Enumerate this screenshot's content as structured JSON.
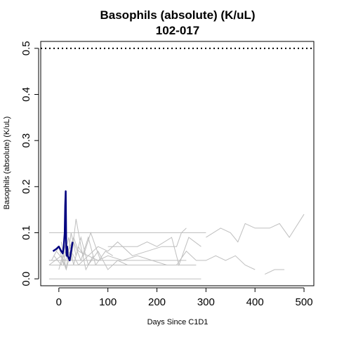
{
  "chart_data": {
    "type": "line",
    "title": "Basophils (absolute) (K/uL)",
    "subtitle": "102-017",
    "xlabel": "Days Since C1D1",
    "ylabel": "Basophils (absolute) (K/uL)",
    "xlim": [
      -37,
      520
    ],
    "ylim": [
      -0.015,
      0.515
    ],
    "x_ticks": [
      0,
      100,
      200,
      300,
      400,
      500
    ],
    "y_ticks": [
      0.0,
      0.1,
      0.2,
      0.3,
      0.4,
      0.5
    ],
    "x_tick_labels": [
      "0",
      "100",
      "200",
      "300",
      "400",
      "500"
    ],
    "y_tick_labels": [
      "0.0",
      "0.1",
      "0.2",
      "0.3",
      "0.4",
      "0.5"
    ],
    "reference_line": {
      "y": 0.5,
      "style": "dotted",
      "color": "#000000"
    },
    "background_color": "#bfbfbf",
    "highlight_color": "#000080",
    "background_series": [
      {
        "x": [
          -20,
          0,
          15,
          30,
          50,
          100,
          150,
          200,
          250,
          300
        ],
        "y": [
          0.1,
          0.1,
          0.1,
          0.1,
          0.1,
          0.1,
          0.1,
          0.1,
          0.1,
          0.1
        ]
      },
      {
        "x": [
          300,
          330,
          350,
          365,
          380,
          400,
          430,
          450,
          470,
          500
        ],
        "y": [
          0.09,
          0.11,
          0.1,
          0.08,
          0.12,
          0.11,
          0.11,
          0.12,
          0.09,
          0.14
        ]
      },
      {
        "x": [
          -20,
          5,
          15,
          25,
          40,
          60,
          80,
          100,
          130,
          160,
          190,
          220,
          240,
          260,
          280,
          300,
          320,
          340,
          360,
          380,
          400
        ],
        "y": [
          0.03,
          0.05,
          0.02,
          0.06,
          0.03,
          0.05,
          0.04,
          0.05,
          0.04,
          0.05,
          0.04,
          0.03,
          0.03,
          0.06,
          0.04,
          0.04,
          0.05,
          0.04,
          0.05,
          0.03,
          0.02
        ]
      },
      {
        "x": [
          -20,
          20,
          60,
          120,
          180,
          220,
          240,
          260,
          290
        ],
        "y": [
          0.0,
          0.0,
          0.0,
          0.0,
          0.0,
          0.0,
          0.0,
          0.0,
          0.0
        ]
      },
      {
        "x": [
          420,
          440,
          460
        ],
        "y": [
          0.01,
          0.02,
          0.02
        ]
      },
      {
        "x": [
          -15,
          0,
          10,
          20,
          30,
          40,
          60,
          80,
          100,
          120,
          150,
          180,
          210,
          240,
          250,
          260
        ],
        "y": [
          0.04,
          0.07,
          0.03,
          0.06,
          0.09,
          0.06,
          0.05,
          0.07,
          0.06,
          0.08,
          0.05,
          0.06,
          0.07,
          0.07,
          0.1,
          0.11
        ]
      },
      {
        "x": [
          -10,
          5,
          15,
          25,
          35,
          45,
          55,
          70
        ],
        "y": [
          0.05,
          0.03,
          0.08,
          0.04,
          0.13,
          0.07,
          0.02,
          0.05
        ]
      },
      {
        "x": [
          -5,
          10,
          20,
          30,
          40,
          50,
          65,
          85
        ],
        "y": [
          0.06,
          0.04,
          0.09,
          0.03,
          0.07,
          0.05,
          0.1,
          0.04
        ]
      },
      {
        "x": [
          0,
          10,
          20,
          30,
          45,
          60,
          75,
          95,
          110
        ],
        "y": [
          0.02,
          0.06,
          0.05,
          0.08,
          0.04,
          0.09,
          0.03,
          0.06,
          0.05
        ]
      },
      {
        "x": [
          100,
          130,
          160,
          180,
          200,
          230,
          245,
          265,
          290
        ],
        "y": [
          0.07,
          0.07,
          0.07,
          0.08,
          0.07,
          0.09,
          0.03,
          0.09,
          0.07
        ]
      },
      {
        "x": [
          -20,
          20,
          60,
          100,
          140,
          180,
          220,
          260
        ],
        "y": [
          0.04,
          0.04,
          0.04,
          0.04,
          0.04,
          0.04,
          0.04,
          0.04
        ]
      },
      {
        "x": [
          -20,
          30,
          80,
          130,
          180,
          230,
          280
        ],
        "y": [
          0.03,
          0.03,
          0.03,
          0.03,
          0.03,
          0.03,
          0.03
        ]
      },
      {
        "x": [
          5,
          15,
          25,
          35,
          45,
          60,
          80,
          100,
          120,
          140
        ],
        "y": [
          0.08,
          0.02,
          0.1,
          0.05,
          0.09,
          0.03,
          0.06,
          0.02,
          0.04,
          0.03
        ]
      }
    ],
    "highlight_series": {
      "name": "102-017",
      "x": [
        -12,
        -5,
        0,
        5,
        8,
        10,
        12,
        13,
        14,
        15,
        16,
        17,
        18,
        20,
        22,
        25,
        28
      ],
      "y": [
        0.06,
        0.065,
        0.07,
        0.06,
        0.055,
        0.07,
        0.1,
        0.16,
        0.19,
        0.07,
        0.05,
        0.07,
        0.05,
        0.045,
        0.04,
        0.06,
        0.08
      ]
    }
  }
}
